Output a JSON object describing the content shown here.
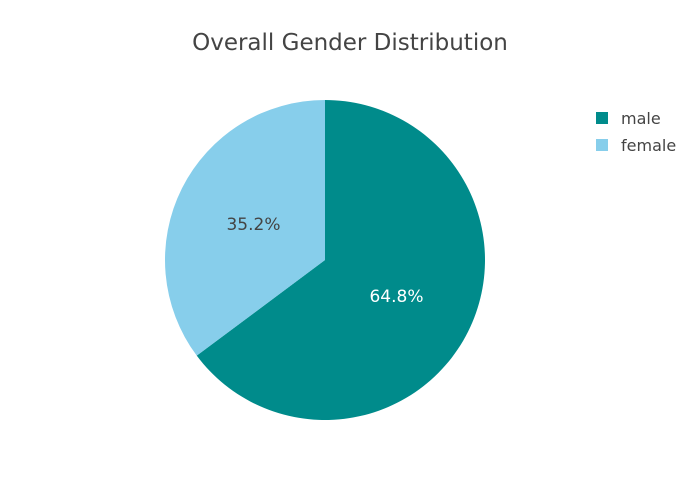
{
  "chart_data": {
    "type": "pie",
    "title": "Overall Gender Distribution",
    "categories": [
      "male",
      "female"
    ],
    "values": [
      64.8,
      35.2
    ],
    "labels": [
      "64.8%",
      "35.2%"
    ],
    "colors": [
      "#008b8b",
      "#87ceeb"
    ],
    "label_colors": [
      "#ffffff",
      "#444444"
    ],
    "legend": {
      "placement": "top-right",
      "entries": [
        "male",
        "female"
      ]
    },
    "start_angle_deg": 90,
    "direction": "clockwise"
  }
}
